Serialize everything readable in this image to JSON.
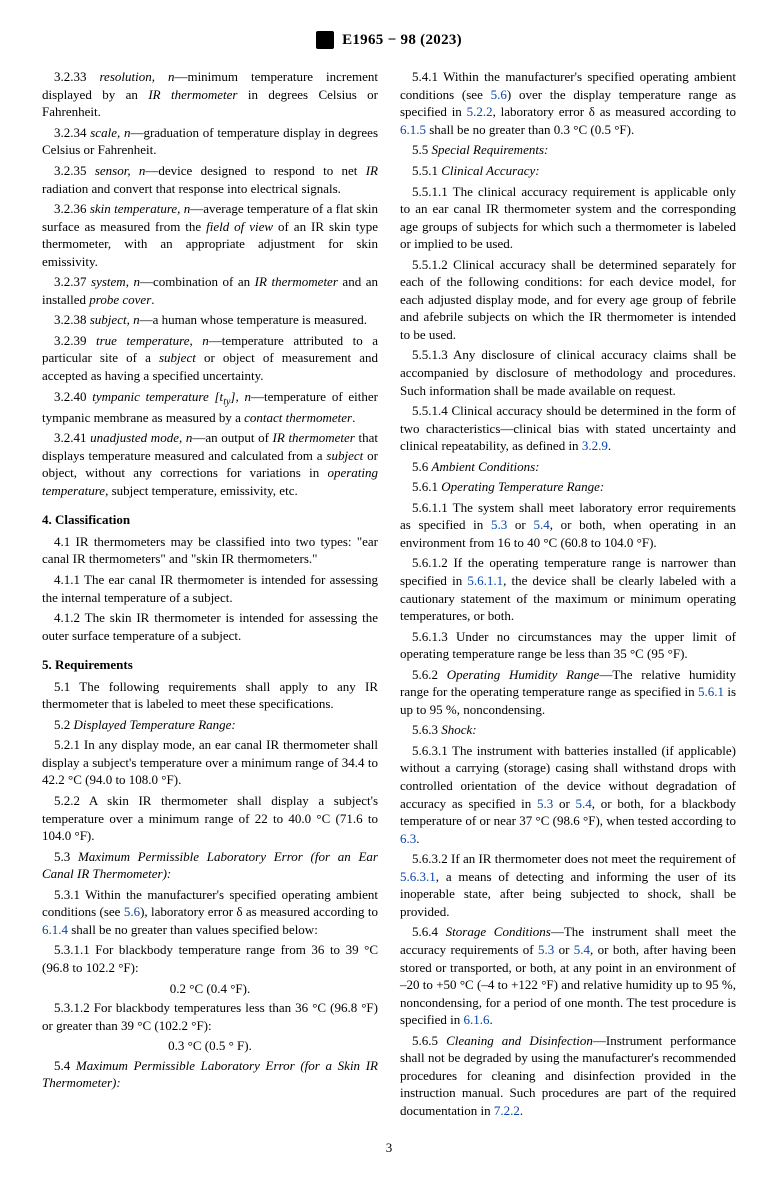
{
  "header": {
    "designation": "E1965 − 98 (2023)"
  },
  "page_number": "3",
  "left": {
    "d3_2_33": {
      "num": "3.2.33",
      "term": "resolution, n",
      "def": "—minimum temperature increment displayed by an ",
      "ital1": "IR thermometer",
      "def2": " in degrees Celsius or Fahrenheit."
    },
    "d3_2_34": {
      "num": "3.2.34",
      "term": "scale, n",
      "def": "—graduation of temperature display in degrees Celsius or Fahrenheit."
    },
    "d3_2_35": {
      "num": "3.2.35",
      "term": "sensor, n",
      "def": "—device designed to respond to net ",
      "ital1": "IR",
      "def2": " radiation and convert that response into electrical signals."
    },
    "d3_2_36": {
      "num": "3.2.36",
      "term": "skin temperature, n",
      "def": "—average temperature of a flat skin surface as measured from the ",
      "ital1": "field of view",
      "def2": " of an IR skin type thermometer, with an appropriate adjustment for skin emissivity."
    },
    "d3_2_37": {
      "num": "3.2.37",
      "term": "system, n",
      "def": "—combination of an ",
      "ital1": "IR thermometer",
      "def2": " and an installed ",
      "ital2": "probe cover",
      "def3": "."
    },
    "d3_2_38": {
      "num": "3.2.38",
      "term": "subject, n",
      "def": "—a human whose temperature is measured."
    },
    "d3_2_39": {
      "num": "3.2.39",
      "term": "true temperature, n",
      "def": "—temperature attributed to a particular site of a ",
      "ital1": "subject",
      "def2": " or object of measurement and accepted as having a specified uncertainty."
    },
    "d3_2_40": {
      "num": "3.2.40",
      "term": "tympanic temperature [t",
      "sub": "ty",
      "term2": "], n",
      "def": "—temperature of either tympanic membrane as measured by a ",
      "ital1": "contact thermometer",
      "def2": "."
    },
    "d3_2_41": {
      "num": "3.2.41",
      "term": "unadjusted mode, n",
      "def": "—an output of ",
      "ital1": "IR thermometer",
      "def2": " that displays temperature measured and calculated from a ",
      "ital2": "subject",
      "def3": " or object, without any corrections for variations in ",
      "ital3": "operating temperature",
      "def4": ", subject temperature, emissivity, etc."
    },
    "s4": {
      "head": "4.  Classification"
    },
    "p4_1": {
      "num": "4.1",
      "text": " IR thermometers may be classified into two types: \"ear canal IR thermometers\" and \"skin IR thermometers.\""
    },
    "p4_1_1": {
      "num": "4.1.1",
      "text": " The ear canal IR thermometer is intended for assessing the internal temperature of a subject."
    },
    "p4_1_2": {
      "num": "4.1.2",
      "text": " The skin IR thermometer is intended for assessing the outer surface temperature of a subject."
    },
    "s5": {
      "head": "5.  Requirements"
    },
    "p5_1": {
      "num": "5.1",
      "text": " The following requirements shall apply to any IR thermometer that is labeled to meet these specifications."
    },
    "p5_2": {
      "num": "5.2",
      "ital": "Displayed Temperature Range:"
    },
    "p5_2_1": {
      "num": "5.2.1",
      "text": " In any display mode, an ear canal IR thermometer shall display a subject's temperature over a minimum range of 34.4 to 42.2 °C (94.0 to 108.0 °F)."
    },
    "p5_2_2": {
      "num": "5.2.2",
      "text": " A skin IR thermometer shall display a subject's temperature over a minimum range of 22 to 40.0 °C (71.6 to 104.0 °F)."
    },
    "p5_3": {
      "num": "5.3",
      "ital": "Maximum Permissible Laboratory Error (for an Ear Canal IR Thermometer):"
    },
    "p5_3_1": {
      "num": "5.3.1",
      "text1": " Within the manufacturer's specified operating ambient conditions (see ",
      "ref1": "5.6",
      "text2": "), laboratory error δ as measured according to ",
      "ref2": "6.1.4",
      "text3": " shall be no greater than values specified below:"
    },
    "p5_3_1_1": {
      "num": "5.3.1.1",
      "text": " For blackbody temperature range from 36 to 39 °C (96.8 to 102.2 °F):"
    },
    "c1": "0.2 °C (0.4 °F).",
    "p5_3_1_2": {
      "num": "5.3.1.2",
      "text": " For blackbody temperatures less than 36 °C (96.8 °F) or greater than 39 °C (102.2 °F):"
    },
    "c2": "0.3 °C (0.5 ° F).",
    "p5_4": {
      "num": "5.4",
      "ital": "Maximum Permissible Laboratory Error (for a Skin IR Thermometer):"
    }
  },
  "right": {
    "p5_4_1": {
      "num": "5.4.1",
      "t1": " Within the manufacturer's specified operating ambient conditions (see ",
      "r1": "5.6",
      "t2": ") over the display temperature range as specified in ",
      "r2": "5.2.2",
      "t3": ", laboratory error δ as measured according to ",
      "r3": "6.1.5",
      "t4": " shall be no greater than 0.3 °C (0.5 °F)."
    },
    "p5_5": {
      "num": "5.5",
      "ital": "Special Requirements:"
    },
    "p5_5_1": {
      "num": "5.5.1",
      "ital": "Clinical Accuracy:"
    },
    "p5_5_1_1": {
      "num": "5.5.1.1",
      "text": " The clinical accuracy requirement is applicable only to an ear canal IR thermometer system and the corresponding age groups of subjects for which such a thermometer is labeled or implied to be used."
    },
    "p5_5_1_2": {
      "num": "5.5.1.2",
      "text": " Clinical accuracy shall be determined separately for each of the following conditions: for each device model, for each adjusted display mode, and for every age group of febrile and afebrile subjects on which the IR thermometer is intended to be used."
    },
    "p5_5_1_3": {
      "num": "5.5.1.3",
      "text": " Any disclosure of clinical accuracy claims shall be accompanied by disclosure of methodology and procedures. Such information shall be made available on request."
    },
    "p5_5_1_4": {
      "num": "5.5.1.4",
      "t1": " Clinical accuracy should be determined in the form of two characteristics—clinical bias with stated uncertainty and clinical repeatability, as defined in ",
      "r1": "3.2.9",
      "t2": "."
    },
    "p5_6": {
      "num": "5.6",
      "ital": "Ambient Conditions:"
    },
    "p5_6_1": {
      "num": "5.6.1",
      "ital": "Operating Temperature Range:"
    },
    "p5_6_1_1": {
      "num": "5.6.1.1",
      "t1": " The system shall meet laboratory error requirements as specified in ",
      "r1": "5.3",
      "t2": " or ",
      "r2": "5.4",
      "t3": ", or both, when operating in an environment from 16 to 40 °C (60.8 to 104.0 °F)."
    },
    "p5_6_1_2": {
      "num": "5.6.1.2",
      "t1": " If the operating temperature range is narrower than specified in ",
      "r1": "5.6.1.1",
      "t2": ", the device shall be clearly labeled with a cautionary statement of the maximum or minimum operating temperatures, or both."
    },
    "p5_6_1_3": {
      "num": "5.6.1.3",
      "text": " Under no circumstances may the upper limit of operating temperature range be less than 35 °C (95 °F)."
    },
    "p5_6_2": {
      "num": "5.6.2",
      "ital": "Operating Humidity Range",
      "t1": "—The relative humidity range for the operating temperature range as specified in ",
      "r1": "5.6.1",
      "t2": " is up to 95 %, noncondensing."
    },
    "p5_6_3": {
      "num": "5.6.3",
      "ital": "Shock:"
    },
    "p5_6_3_1": {
      "num": "5.6.3.1",
      "t1": " The instrument with batteries installed (if applicable) without a carrying (storage) casing shall withstand drops with controlled orientation of the device without degradation of accuracy as specified in ",
      "r1": "5.3",
      "t2": " or ",
      "r2": "5.4",
      "t3": ", or both, for a blackbody temperature of or near 37 °C (98.6 °F), when tested according to ",
      "r3": "6.3",
      "t4": "."
    },
    "p5_6_3_2": {
      "num": "5.6.3.2",
      "t1": " If an IR thermometer does not meet the requirement of ",
      "r1": "5.6.3.1",
      "t2": ", a means of detecting and informing the user of its inoperable state, after being subjected to shock, shall be provided."
    },
    "p5_6_4": {
      "num": "5.6.4",
      "ital": "Storage Conditions",
      "t1": "—The instrument shall meet the accuracy requirements of ",
      "r1": "5.3",
      "t2": " or ",
      "r2": "5.4",
      "t3": ", or both, after having been stored or transported, or both, at any point in an environment of –20 to +50 °C (–4 to +122 °F) and relative humidity up to 95 %, noncondensing, for a period of one month. The test procedure is specified in ",
      "r3": "6.1.6",
      "t4": "."
    },
    "p5_6_5": {
      "num": "5.6.5",
      "ital": "Cleaning and Disinfection",
      "t1": "—Instrument performance shall not be degraded by using the manufacturer's recommended procedures for cleaning and disinfection provided in the instruction manual. Such procedures are part of the required documentation in ",
      "r1": "7.2.2",
      "t2": "."
    }
  }
}
